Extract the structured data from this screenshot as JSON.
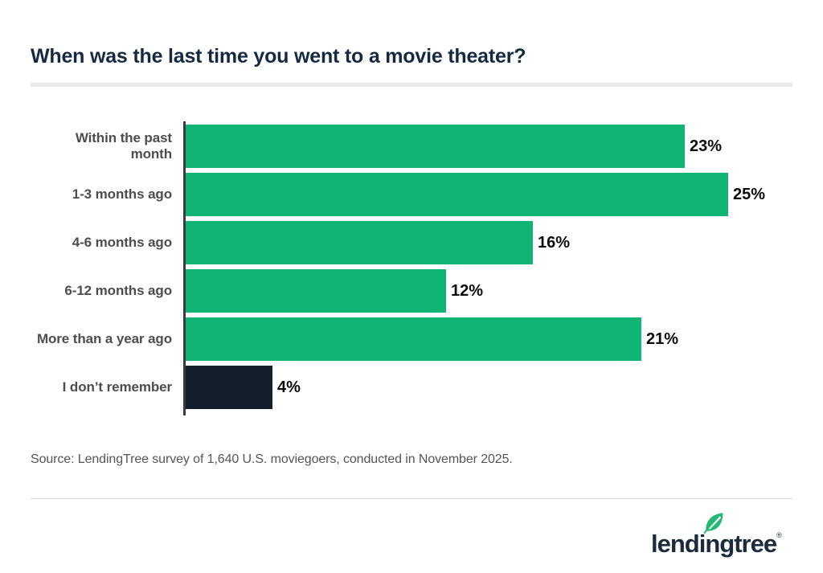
{
  "title": "When was the last time you went to a movie theater?",
  "source": "Source: LendingTree survey of 1,640 U.S. moviegoers, conducted in November 2025.",
  "logo": {
    "text": "lendingtree",
    "registered": "®"
  },
  "colors": {
    "bar_green": "#10b573",
    "bar_navy": "#141f2d",
    "title_navy": "#152a42",
    "category_label": "#4d4d4d",
    "value_label": "#0c0c0c",
    "axis": "#3b3b3b",
    "divider_thick": "#e9e9e9",
    "divider_thin": "#d8d8d8",
    "leaf_green": "#25b873",
    "logo_navy": "#1b2b3d"
  },
  "chart_data": {
    "type": "bar",
    "orientation": "horizontal",
    "title": "When was the last time you went to a movie theater?",
    "categories": [
      "Within the past month",
      "1-3 months ago",
      "4-6 months ago",
      "6-12 months ago",
      "More than a year ago",
      "I don’t remember"
    ],
    "values": [
      23,
      25,
      16,
      12,
      21,
      4
    ],
    "value_labels": [
      "23%",
      "25%",
      "16%",
      "12%",
      "21%",
      "4%"
    ],
    "bar_colors": [
      "green",
      "green",
      "green",
      "green",
      "green",
      "navy"
    ],
    "unit": "%",
    "xlim": [
      0,
      25
    ],
    "grid": false,
    "legend": false,
    "value_label_position": "outside-end"
  }
}
